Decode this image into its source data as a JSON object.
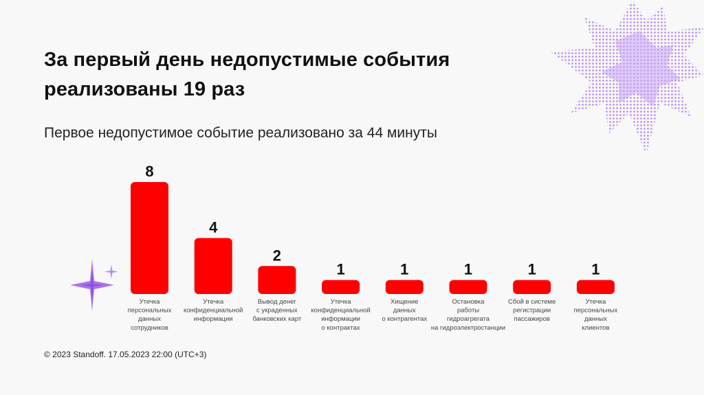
{
  "header": {
    "title_line1": "За первый день недопустимые события",
    "title_line2": "реализованы 19 раз",
    "subtitle": "Первое недопустимое событие реализовано за 44 минуты"
  },
  "footer": {
    "text": "© 2023 Standoff. 17.05.2023 22:00 (UTC+3)"
  },
  "colors": {
    "bar": "#ff0000",
    "accent": "#b98cf0",
    "sparkle": "#a974e8"
  },
  "icons": {
    "star": "sparkle-star-icon",
    "blob": "starburst-blob-icon"
  },
  "chart_data": {
    "type": "bar",
    "title": "За первый день недопустимые события реализованы 19 раз",
    "xlabel": "",
    "ylabel": "",
    "ylim": [
      0,
      8
    ],
    "categories": [
      [
        "Утечка",
        "персональных",
        "данных",
        "сотрудников"
      ],
      [
        "Утечка",
        "конфиденциальной",
        "информации"
      ],
      [
        "Вывод денег",
        "с украденных",
        "банковских карт"
      ],
      [
        "Утечка",
        "конфиденциальной",
        "информации",
        "о контрактах"
      ],
      [
        "Хищение",
        "данных",
        "о контрагентах"
      ],
      [
        "Остановка",
        "работы",
        "гидроагрегата",
        "на гидроэлектростанции"
      ],
      [
        "Сбой в системе",
        "регистрации",
        "пассажиров"
      ],
      [
        "Утечка",
        "персональных",
        "данных",
        "клиентов"
      ]
    ],
    "values": [
      8,
      4,
      2,
      1,
      1,
      1,
      1,
      1
    ]
  }
}
